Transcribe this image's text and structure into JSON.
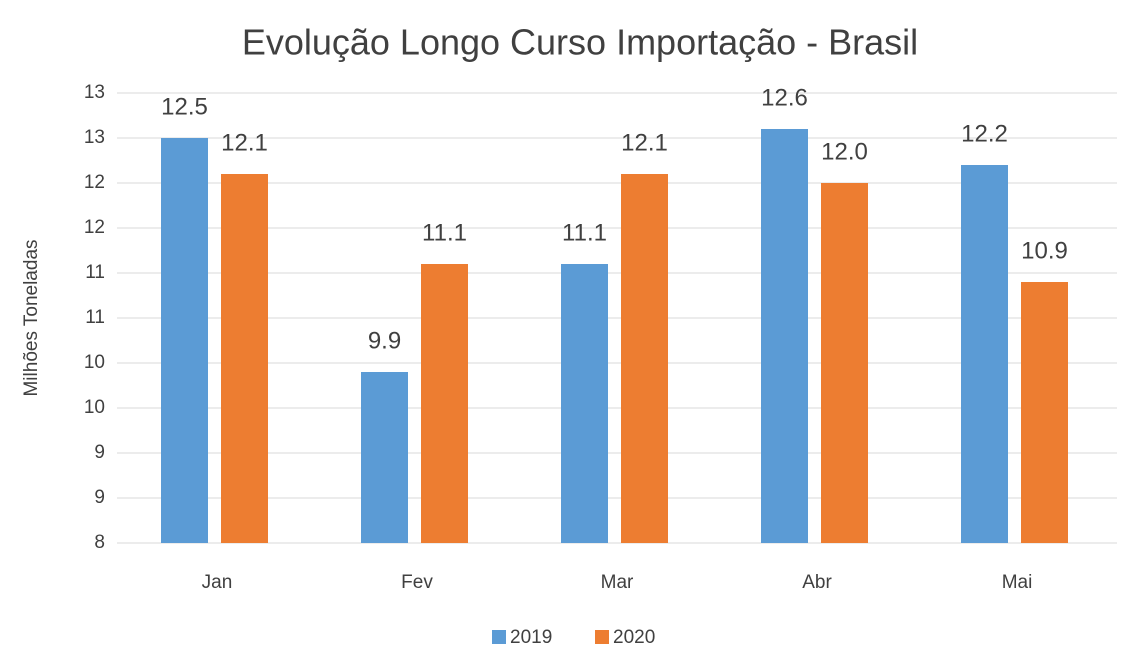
{
  "chart_data": {
    "type": "bar",
    "title": "Evolução Longo Curso Importação - Brasil",
    "y_label": "Milhões Toneladas",
    "categories": [
      "Jan",
      "Fev",
      "Mar",
      "Abr",
      "Mai"
    ],
    "series": [
      {
        "name": "2019",
        "color": "#5b9bd5",
        "values": [
          12.5,
          9.9,
          11.1,
          12.6,
          12.2
        ],
        "value_labels": [
          "12.5",
          "9.9",
          "11.1",
          "12.6",
          "12.2"
        ]
      },
      {
        "name": "2020",
        "color": "#ed7d31",
        "values": [
          12.1,
          11.1,
          12.1,
          12.0,
          10.9
        ],
        "value_labels": [
          "12.1",
          "11.1",
          "12.1",
          "12.0",
          "10.9"
        ]
      }
    ],
    "ylim": [
      8,
      13
    ],
    "yticks": [
      8,
      {
        "value": 8.5,
        "label": "9"
      },
      9,
      {
        "value": 9.5,
        "label": "10"
      },
      10,
      {
        "value": 10.5,
        "label": "11"
      },
      11,
      {
        "value": 11.5,
        "label": "12"
      },
      12,
      {
        "value": 12.5,
        "label": "13"
      },
      13
    ],
    "grid": true,
    "legend": "bottom"
  }
}
